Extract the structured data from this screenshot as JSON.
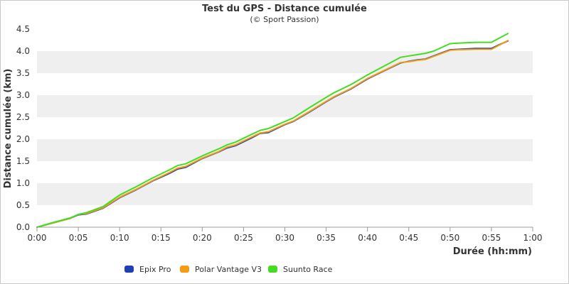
{
  "chart_data": {
    "type": "line",
    "title": "Test du GPS - Distance cumulée",
    "subtitle": "(© Sport Passion)",
    "xlabel": "Durée (hh:mm)",
    "ylabel": "Distance cumulée (km)",
    "xlim": [
      "0:00",
      "1:00"
    ],
    "ylim": [
      0,
      4.5
    ],
    "x_ticks": [
      "0:00",
      "0:05",
      "0:10",
      "0:15",
      "0:20",
      "0:25",
      "0:30",
      "0:35",
      "0:40",
      "0:45",
      "0:50",
      "0:55",
      "1:00"
    ],
    "y_ticks": [
      "0.0",
      "0.5",
      "1.0",
      "1.5",
      "2.0",
      "2.5",
      "3.0",
      "3.5",
      "4.0",
      "4.5"
    ],
    "grid": "alternating horizontal bands",
    "legend_position": "bottom-left",
    "x": [
      "0:00",
      "0:02",
      "0:04",
      "0:05",
      "0:06",
      "0:08",
      "0:10",
      "0:12",
      "0:14",
      "0:16",
      "0:17",
      "0:18",
      "0:20",
      "0:22",
      "0:23",
      "0:24",
      "0:26",
      "0:27",
      "0:28",
      "0:30",
      "0:31",
      "0:33",
      "0:35",
      "0:36",
      "0:38",
      "0:40",
      "0:42",
      "0:44",
      "0:45",
      "0:46",
      "0:47",
      "0:48",
      "0:50",
      "0:51",
      "0:53",
      "0:55",
      "0:56",
      "0:57"
    ],
    "series": [
      {
        "name": "Epix Pro",
        "color": "#1f3fb4",
        "values": [
          0.0,
          0.1,
          0.2,
          0.28,
          0.3,
          0.43,
          0.67,
          0.85,
          1.05,
          1.22,
          1.32,
          1.36,
          1.56,
          1.71,
          1.8,
          1.85,
          2.03,
          2.13,
          2.15,
          2.33,
          2.4,
          2.62,
          2.85,
          2.96,
          3.14,
          3.37,
          3.55,
          3.73,
          3.77,
          3.8,
          3.82,
          3.89,
          4.03,
          4.04,
          4.06,
          4.06,
          4.15,
          4.23
        ]
      },
      {
        "name": "Polar Vantage V3",
        "color": "#f39c12",
        "values": [
          0.0,
          0.1,
          0.2,
          0.29,
          0.31,
          0.44,
          0.68,
          0.86,
          1.06,
          1.24,
          1.34,
          1.38,
          1.57,
          1.72,
          1.82,
          1.87,
          2.05,
          2.14,
          2.17,
          2.34,
          2.41,
          2.63,
          2.86,
          2.97,
          3.15,
          3.38,
          3.56,
          3.74,
          3.76,
          3.79,
          3.81,
          3.88,
          4.02,
          4.03,
          4.04,
          4.04,
          4.14,
          4.24
        ]
      },
      {
        "name": "Suunto Race",
        "color": "#44dd22",
        "values": [
          0.0,
          0.11,
          0.21,
          0.29,
          0.33,
          0.47,
          0.73,
          0.92,
          1.12,
          1.3,
          1.4,
          1.44,
          1.62,
          1.78,
          1.87,
          1.93,
          2.11,
          2.2,
          2.24,
          2.4,
          2.48,
          2.72,
          2.95,
          3.06,
          3.24,
          3.46,
          3.66,
          3.86,
          3.89,
          3.92,
          3.95,
          4.0,
          4.17,
          4.18,
          4.2,
          4.2,
          4.3,
          4.4
        ]
      }
    ]
  }
}
